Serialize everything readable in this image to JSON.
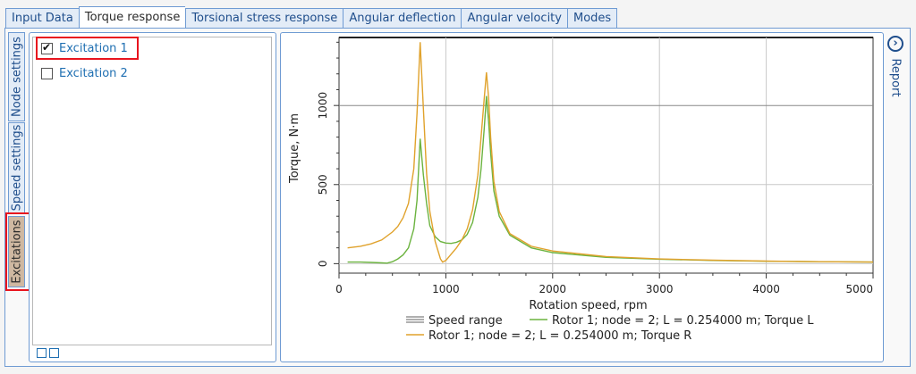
{
  "tabs": [
    {
      "label": "Input Data",
      "active": false
    },
    {
      "label": "Torque response",
      "active": true
    },
    {
      "label": "Torsional stress response",
      "active": false
    },
    {
      "label": "Angular deflection",
      "active": false
    },
    {
      "label": "Angular velocity",
      "active": false
    },
    {
      "label": "Modes",
      "active": false
    }
  ],
  "side_tabs": {
    "node_settings": "Node settings",
    "speed_settings": "Speed settings",
    "excitations": "Excitations"
  },
  "excitations": [
    {
      "label": "Excitation 1",
      "checked": true
    },
    {
      "label": "Excitation 2",
      "checked": false
    }
  ],
  "report_label": "Report",
  "colors": {
    "torque_l": "#6bb33f",
    "torque_r": "#e0a22c",
    "speed_range": "#808080",
    "highlight": "#e8141e"
  },
  "chart_data": {
    "type": "line",
    "xlabel": "Rotation speed, rpm",
    "ylabel": "Torque, N·m",
    "xlim": [
      0,
      5000
    ],
    "ylim": [
      -60,
      1430
    ],
    "xticks": [
      0,
      1000,
      2000,
      3000,
      4000,
      5000
    ],
    "xtick_labels": [
      "0",
      "1000",
      "2000",
      "3000",
      "4000",
      "5000"
    ],
    "yticks": [
      0,
      500,
      1000
    ],
    "ytick_labels": [
      "0",
      "500",
      "1000"
    ],
    "grid": true,
    "legend_position": "bottom",
    "legend": [
      {
        "label": "Speed range",
        "color": "#808080"
      },
      {
        "label": "Rotor 1; node = 2; L = 0.254000 m; Torque L",
        "color": "#6bb33f"
      },
      {
        "label": "Rotor 1; node = 2; L = 0.254000 m; Torque R",
        "color": "#e0a22c"
      }
    ],
    "series": [
      {
        "name": "Rotor 1; node = 2; L = 0.254000 m; Torque L",
        "color": "#6bb33f",
        "x": [
          80,
          200,
          300,
          400,
          450,
          500,
          550,
          600,
          650,
          700,
          730,
          760,
          790,
          820,
          850,
          900,
          950,
          1000,
          1050,
          1100,
          1150,
          1200,
          1250,
          1300,
          1330,
          1360,
          1380,
          1400,
          1420,
          1450,
          1500,
          1600,
          1800,
          2000,
          2500,
          3000,
          3500,
          4000,
          4500,
          5000
        ],
        "y": [
          10,
          10,
          8,
          5,
          3,
          12,
          30,
          55,
          100,
          220,
          400,
          790,
          560,
          380,
          240,
          170,
          140,
          130,
          128,
          135,
          150,
          185,
          260,
          420,
          600,
          860,
          1060,
          900,
          700,
          460,
          300,
          180,
          100,
          70,
          40,
          28,
          20,
          15,
          12,
          10
        ]
      },
      {
        "name": "Rotor 1; node = 2; L = 0.254000 m; Torque R",
        "color": "#e0a22c",
        "x": [
          80,
          200,
          300,
          400,
          500,
          550,
          600,
          650,
          700,
          730,
          760,
          790,
          820,
          850,
          900,
          950,
          970,
          1000,
          1050,
          1100,
          1150,
          1200,
          1250,
          1300,
          1330,
          1360,
          1380,
          1400,
          1420,
          1450,
          1500,
          1600,
          1800,
          2000,
          2500,
          3000,
          3500,
          4000,
          4500,
          5000
        ],
        "y": [
          100,
          110,
          125,
          150,
          200,
          235,
          290,
          380,
          600,
          950,
          1400,
          980,
          570,
          330,
          140,
          30,
          10,
          20,
          60,
          100,
          150,
          220,
          340,
          560,
          800,
          1050,
          1210,
          1050,
          800,
          520,
          330,
          190,
          110,
          80,
          45,
          30,
          22,
          16,
          12,
          10
        ]
      }
    ]
  }
}
